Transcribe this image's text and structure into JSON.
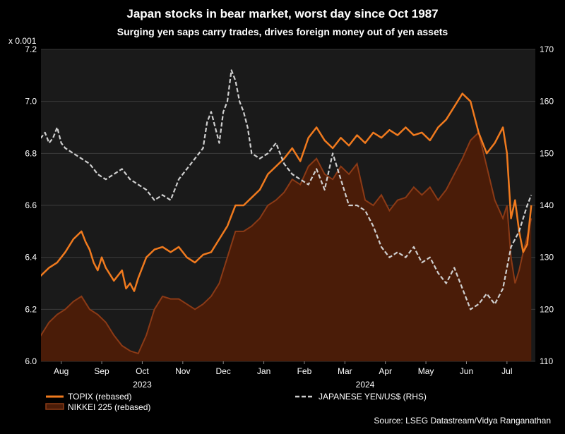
{
  "colors": {
    "background": "#000000",
    "plot_background": "#1a1a1a",
    "topix": "#f07a1e",
    "nikkei_fill": "#4a1c08",
    "nikkei_line": "#8b3a16",
    "yen": "#cfcfcf"
  },
  "chart_data": {
    "type": "line",
    "title": "Japan stocks in bear market, worst day since Oct 1987",
    "subtitle": "Surging yen saps carry trades, drives foreign money out of yen assets",
    "left_axis": {
      "unit_label": "x 0.001",
      "ylim": [
        6.0,
        7.2
      ],
      "ticks": [
        "7.2",
        "7.0",
        "6.8",
        "6.6",
        "6.4",
        "6.2",
        "6.0"
      ]
    },
    "right_axis": {
      "ylim": [
        110,
        170
      ],
      "ticks": [
        "170",
        "160",
        "150",
        "140",
        "130",
        "120",
        "110"
      ]
    },
    "x_months": [
      "Aug",
      "Sep",
      "Oct",
      "Nov",
      "Dec",
      "Jan",
      "Feb",
      "Mar",
      "Apr",
      "May",
      "Jun",
      "Jul"
    ],
    "x_years": [
      "2023",
      "2024"
    ],
    "x_range_months": [
      0,
      12.2
    ],
    "series": [
      {
        "name": "TOPIX (rebased)",
        "axis": "left",
        "style": "solid",
        "x": [
          -0.5,
          -0.4,
          -0.2,
          0,
          0.2,
          0.4,
          0.6,
          0.8,
          1.0,
          1.1,
          1.2,
          1.3,
          1.4,
          1.5,
          1.6,
          1.8,
          2.0,
          2.1,
          2.2,
          2.3,
          2.4,
          2.6,
          2.8,
          3.0,
          3.2,
          3.4,
          3.6,
          3.8,
          4.0,
          4.2,
          4.4,
          4.6,
          4.8,
          5.0,
          5.2,
          5.4,
          5.6,
          5.8,
          6.0,
          6.2,
          6.4,
          6.6,
          6.8,
          7.0,
          7.2,
          7.4,
          7.6,
          7.8,
          8.0,
          8.2,
          8.4,
          8.6,
          8.8,
          9.0,
          9.2,
          9.4,
          9.6,
          9.8,
          10.0,
          10.2,
          10.4,
          10.6,
          10.8,
          11.0,
          11.2,
          11.4,
          11.5,
          11.6,
          11.7,
          11.8,
          11.9,
          12.0,
          12.1
        ],
        "values": [
          6.33,
          6.35,
          6.3,
          6.33,
          6.36,
          6.38,
          6.42,
          6.47,
          6.5,
          6.46,
          6.43,
          6.38,
          6.35,
          6.4,
          6.36,
          6.31,
          6.35,
          6.28,
          6.3,
          6.27,
          6.32,
          6.4,
          6.43,
          6.44,
          6.42,
          6.44,
          6.4,
          6.38,
          6.41,
          6.42,
          6.47,
          6.52,
          6.6,
          6.6,
          6.63,
          6.66,
          6.72,
          6.75,
          6.78,
          6.82,
          6.77,
          6.86,
          6.9,
          6.85,
          6.82,
          6.86,
          6.83,
          6.87,
          6.84,
          6.88,
          6.86,
          6.89,
          6.87,
          6.9,
          6.87,
          6.88,
          6.85,
          6.9,
          6.93,
          6.98,
          7.03,
          7.0,
          6.88,
          6.8,
          6.84,
          6.9,
          6.8,
          6.55,
          6.62,
          6.5,
          6.42,
          6.45,
          6.6
        ]
      },
      {
        "name": "NIKKEI 225 (rebased)",
        "axis": "left",
        "style": "area",
        "x": [
          -0.5,
          -0.3,
          -0.1,
          0,
          0.2,
          0.4,
          0.6,
          0.8,
          1.0,
          1.2,
          1.4,
          1.6,
          1.8,
          2.0,
          2.2,
          2.4,
          2.6,
          2.8,
          3.0,
          3.2,
          3.4,
          3.6,
          3.8,
          4.0,
          4.2,
          4.4,
          4.6,
          4.8,
          5.0,
          5.2,
          5.4,
          5.6,
          5.8,
          6.0,
          6.2,
          6.4,
          6.6,
          6.8,
          7.0,
          7.2,
          7.4,
          7.6,
          7.8,
          8.0,
          8.2,
          8.4,
          8.6,
          8.8,
          9.0,
          9.2,
          9.4,
          9.6,
          9.8,
          10.0,
          10.2,
          10.4,
          10.6,
          10.8,
          11.0,
          11.2,
          11.4,
          11.5,
          11.6,
          11.7,
          11.8,
          11.9,
          12.0,
          12.1
        ],
        "values": [
          6.15,
          6.14,
          6.12,
          6.1,
          6.15,
          6.18,
          6.2,
          6.23,
          6.25,
          6.2,
          6.18,
          6.15,
          6.1,
          6.06,
          6.04,
          6.03,
          6.1,
          6.2,
          6.25,
          6.24,
          6.24,
          6.22,
          6.2,
          6.22,
          6.25,
          6.3,
          6.4,
          6.5,
          6.5,
          6.52,
          6.55,
          6.6,
          6.62,
          6.65,
          6.7,
          6.68,
          6.75,
          6.78,
          6.72,
          6.7,
          6.75,
          6.72,
          6.76,
          6.62,
          6.6,
          6.64,
          6.58,
          6.62,
          6.63,
          6.67,
          6.64,
          6.67,
          6.62,
          6.66,
          6.72,
          6.78,
          6.85,
          6.88,
          6.75,
          6.62,
          6.55,
          6.6,
          6.4,
          6.3,
          6.35,
          6.42,
          6.48,
          6.55
        ]
      },
      {
        "name": "JAPANESE YEN/US$ (RHS)",
        "axis": "right",
        "style": "dashed",
        "x": [
          -0.5,
          -0.4,
          -0.3,
          -0.2,
          -0.1,
          0,
          0.1,
          0.2,
          0.3,
          0.4,
          0.5,
          0.6,
          0.8,
          1.0,
          1.2,
          1.4,
          1.6,
          1.8,
          2.0,
          2.2,
          2.4,
          2.6,
          2.8,
          3.0,
          3.2,
          3.4,
          3.6,
          3.8,
          4.0,
          4.1,
          4.2,
          4.3,
          4.4,
          4.5,
          4.6,
          4.7,
          4.8,
          4.9,
          5.0,
          5.1,
          5.2,
          5.4,
          5.6,
          5.8,
          6.0,
          6.2,
          6.4,
          6.6,
          6.8,
          7.0,
          7.2,
          7.4,
          7.6,
          7.8,
          8.0,
          8.2,
          8.4,
          8.6,
          8.8,
          9.0,
          9.2,
          9.4,
          9.6,
          9.8,
          10.0,
          10.2,
          10.4,
          10.6,
          10.8,
          11.0,
          11.2,
          11.4,
          11.6,
          11.8,
          12.0,
          12.1
        ],
        "values": [
          158,
          162,
          160,
          157,
          155,
          153,
          154,
          152,
          153,
          155,
          152,
          151,
          150,
          149,
          148,
          146,
          145,
          146,
          147,
          145,
          144,
          143,
          141,
          142,
          141,
          145,
          147,
          149,
          151,
          156,
          158,
          155,
          152,
          158,
          160,
          166,
          164,
          160,
          158,
          155,
          150,
          149,
          150,
          152,
          148,
          146,
          145,
          144,
          147,
          143,
          150,
          145,
          140,
          140,
          139,
          136,
          132,
          130,
          131,
          130,
          132,
          129,
          130,
          127,
          125,
          128,
          124,
          120,
          121,
          123,
          121,
          124,
          132,
          135,
          140,
          142
        ]
      }
    ],
    "legend": [
      {
        "label": "TOPIX (rebased)",
        "series": "TOPIX (rebased)"
      },
      {
        "label": "NIKKEI 225 (rebased)",
        "series": "NIKKEI 225 (rebased)"
      },
      {
        "label": "JAPANESE YEN/US$ (RHS)",
        "series": "JAPANESE YEN/US$ (RHS)"
      }
    ],
    "source": "Source: LSEG Datastream/Vidya Ranganathan"
  }
}
